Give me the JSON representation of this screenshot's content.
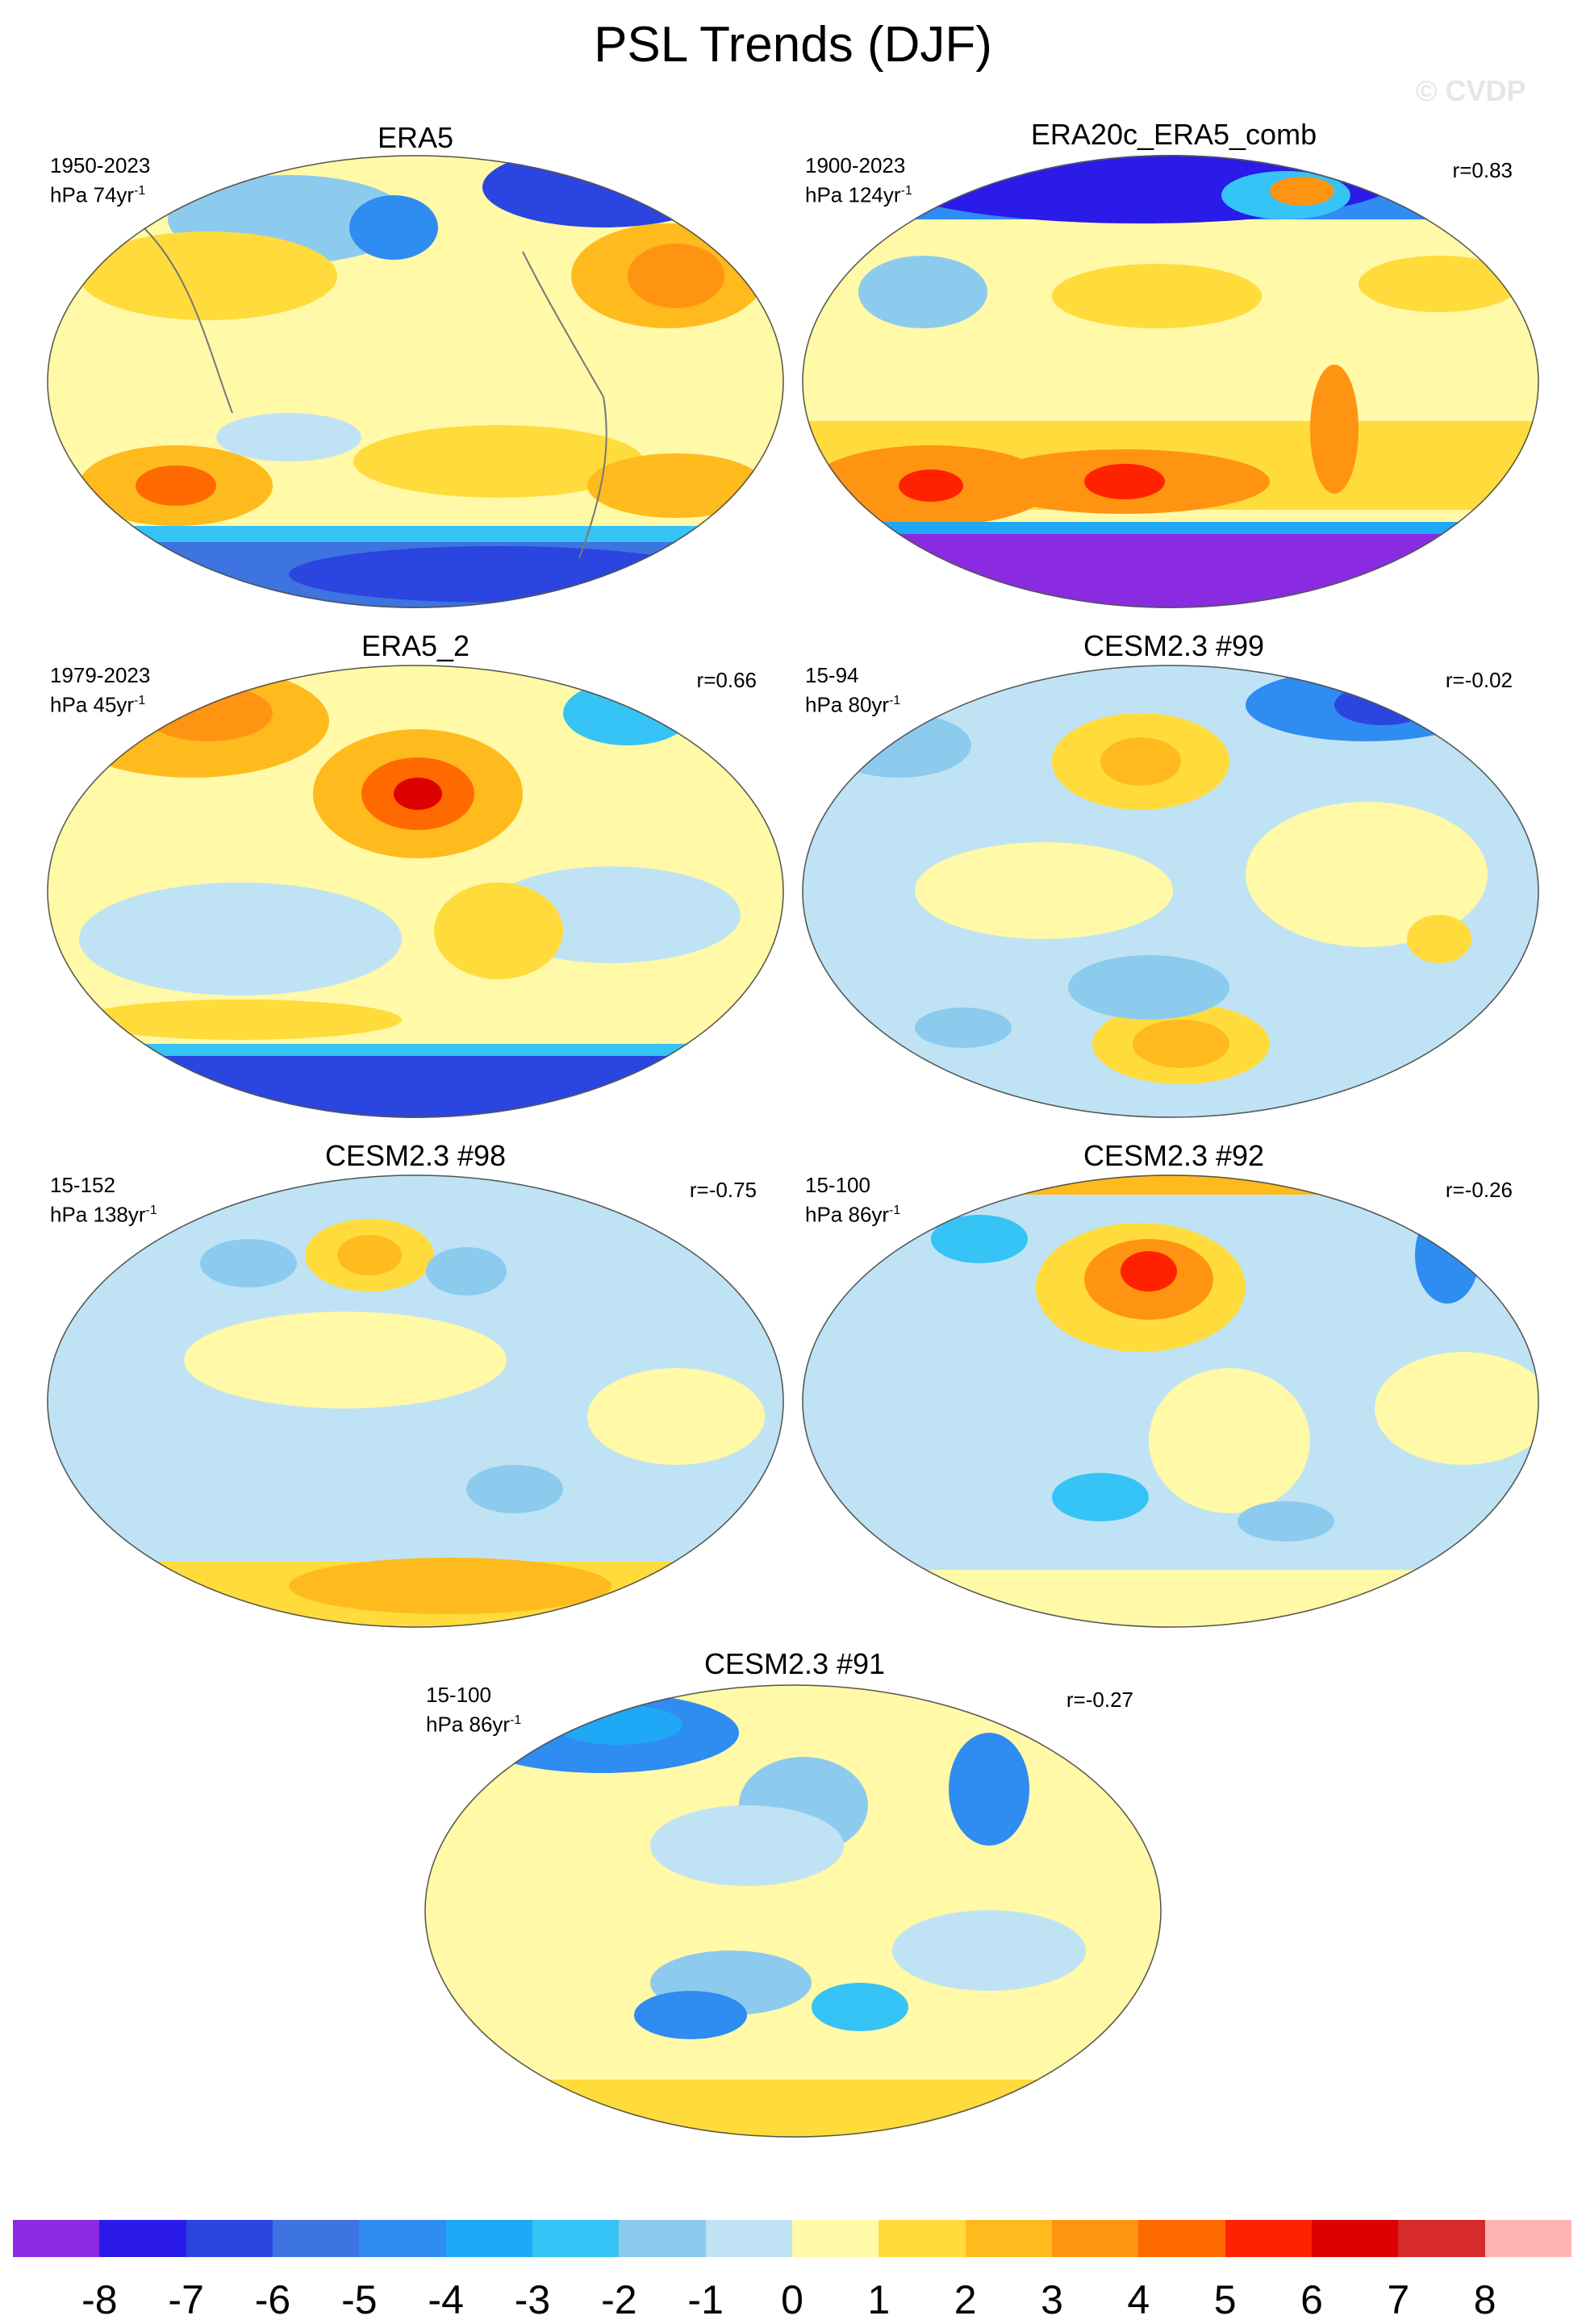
{
  "title": "PSL Trends (DJF)",
  "watermark": "© CVDP",
  "panels": [
    {
      "name": "ERA5",
      "years": "1950-2023",
      "units": "hPa 74yr",
      "exp": "-1",
      "r": ""
    },
    {
      "name": "ERA20c_ERA5_comb",
      "years": "1900-2023",
      "units": "hPa 124yr",
      "exp": "-1",
      "r": "r=0.83"
    },
    {
      "name": "ERA5_2",
      "years": "1979-2023",
      "units": "hPa 45yr",
      "exp": "-1",
      "r": "r=0.66"
    },
    {
      "name": "CESM2.3 #99",
      "years": "15-94",
      "units": "hPa 80yr",
      "exp": "-1",
      "r": "r=-0.02"
    },
    {
      "name": "CESM2.3 #98",
      "years": "15-152",
      "units": "hPa 138yr",
      "exp": "-1",
      "r": "r=-0.75"
    },
    {
      "name": "CESM2.3 #92",
      "years": "15-100",
      "units": "hPa 86yr",
      "exp": "-1",
      "r": "r=-0.26"
    },
    {
      "name": "CESM2.3 #91",
      "years": "15-100",
      "units": "hPa 86yr",
      "exp": "-1",
      "r": "r=-0.27"
    }
  ],
  "colorbar": {
    "labels": [
      "-8",
      "-7",
      "-6",
      "-5",
      "-4",
      "-3",
      "-2",
      "-1",
      "0",
      "1",
      "2",
      "3",
      "4",
      "5",
      "6",
      "7",
      "8"
    ],
    "colors": [
      "#8a2be2",
      "#2a1be8",
      "#2a45e0",
      "#3d74e0",
      "#2f8cf0",
      "#1fa8f5",
      "#36c3f5",
      "#8ccbee",
      "#bfe3f4",
      "#fff9a8",
      "#ffdc3c",
      "#ffba1e",
      "#ff9412",
      "#ff6a00",
      "#ff2200",
      "#dc0000",
      "#d72a2a",
      "#ffb3b3"
    ]
  }
}
